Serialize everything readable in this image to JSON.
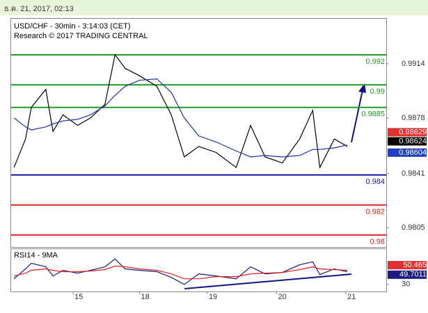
{
  "chart_data": [
    {
      "type": "line",
      "header": "ธ.ค. 21, 2017, 02:13",
      "title": "USD/CHF - 30min - 3:14:03 (CET)",
      "subtitle": "Research © 2017 TRADING CENTRAL",
      "xlim": [
        0,
        260
      ],
      "ylim": [
        0.9792,
        0.9944
      ],
      "xticks": [
        {
          "value": 43,
          "label": "15"
        },
        {
          "value": 89,
          "label": "18"
        },
        {
          "value": 136,
          "label": "19"
        },
        {
          "value": 184,
          "label": "20"
        },
        {
          "value": 232,
          "label": "21"
        }
      ],
      "yticks": [
        0.9914,
        0.9878,
        0.9841,
        0.9805
      ],
      "x": [
        2,
        10,
        14,
        24,
        29,
        36,
        46,
        55,
        65,
        72,
        79,
        89,
        101,
        111,
        120,
        130,
        142,
        156,
        166,
        176,
        188,
        200,
        209,
        214,
        224,
        233
      ],
      "series": [
        {
          "name": "USD/CHF",
          "color": "#000000",
          "values": [
            0.9845,
            0.9864,
            0.9885,
            0.9897,
            0.9869,
            0.988,
            0.9873,
            0.9878,
            0.9887,
            0.992,
            0.9911,
            0.9906,
            0.9899,
            0.988,
            0.9852,
            0.9859,
            0.9855,
            0.9845,
            0.9873,
            0.9852,
            0.9848,
            0.9864,
            0.9883,
            0.9845,
            0.9864,
            0.9859
          ]
        },
        {
          "name": "MA",
          "color": "#2030a0",
          "values": [
            0.9878,
            0.9872,
            0.987,
            0.9872,
            0.9874,
            0.9876,
            0.9877,
            0.988,
            0.9886,
            0.9893,
            0.9899,
            0.9903,
            0.9904,
            0.9895,
            0.9878,
            0.9866,
            0.9862,
            0.9856,
            0.9852,
            0.9853,
            0.9852,
            0.9853,
            0.9857,
            0.9857,
            0.9858,
            0.986
          ]
        }
      ],
      "levels": [
        {
          "value": 0.992,
          "color": "#229922"
        },
        {
          "value": 0.99,
          "color": "#229922"
        },
        {
          "value": 0.9885,
          "color": "#229922"
        },
        {
          "value": 0.984,
          "color": "#1a1aa0"
        },
        {
          "value": 0.982,
          "color": "#e02020"
        },
        {
          "value": 0.98,
          "color": "#e02020"
        }
      ],
      "price_tags": [
        {
          "value": 0.98629,
          "color": "#e03030"
        },
        {
          "value": 0.98624,
          "color": "#000000"
        },
        {
          "value": 0.98604,
          "color": "#2040c0"
        }
      ]
    },
    {
      "type": "line",
      "title": "RSI14 - 9MA",
      "xlim": [
        0,
        260
      ],
      "ylim": [
        20,
        80
      ],
      "yticks": [
        30
      ],
      "x": [
        2,
        10,
        14,
        24,
        29,
        36,
        46,
        55,
        65,
        72,
        79,
        89,
        101,
        111,
        120,
        130,
        142,
        156,
        166,
        176,
        188,
        200,
        209,
        214,
        224,
        233
      ],
      "series": [
        {
          "name": "RSI14",
          "color": "#1a1a80",
          "values": [
            38,
            52,
            60,
            55,
            42,
            50,
            46,
            50,
            55,
            66,
            52,
            50,
            48,
            40,
            30,
            45,
            42,
            38,
            55,
            45,
            47,
            58,
            62,
            44,
            52,
            48
          ]
        },
        {
          "name": "9MA",
          "color": "#e02020",
          "values": [
            42,
            46,
            50,
            52,
            50,
            48,
            48,
            49,
            51,
            56,
            55,
            52,
            50,
            45,
            38,
            38,
            41,
            41,
            45,
            46,
            47,
            51,
            55,
            52,
            51,
            50
          ]
        }
      ],
      "value_tags": [
        {
          "value": 50.465,
          "color": "#e03030"
        },
        {
          "value": 49.7011,
          "color": "#1a1a80"
        }
      ]
    }
  ]
}
